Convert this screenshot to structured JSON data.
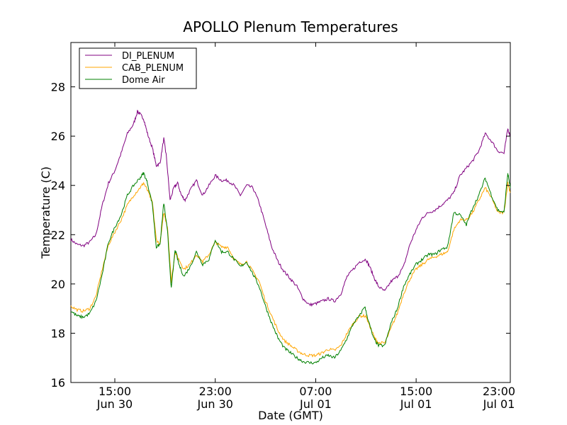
{
  "chart_data": {
    "type": "line",
    "title": "APOLLO Plenum Temperatures",
    "xlabel": "Date (GMT)",
    "ylabel": "Temperature (C)",
    "ylim": [
      16,
      29.8
    ],
    "xlim": [
      11.5,
      46.5
    ],
    "x_unit": "hours since Jun 30 00:00 GMT",
    "yticks": [
      16,
      18,
      20,
      22,
      24,
      26,
      28
    ],
    "xticks": [
      {
        "x": 15,
        "time": "15:00",
        "date": "Jun 30"
      },
      {
        "x": 23,
        "time": "23:00",
        "date": "Jun 30"
      },
      {
        "x": 31,
        "time": "07:00",
        "date": "Jul 01"
      },
      {
        "x": 39,
        "time": "15:00",
        "date": "Jul 01"
      },
      {
        "x": 47,
        "time": "23:00",
        "date": "Jul 01"
      }
    ],
    "grid": false,
    "legend_position": "top-left",
    "series": [
      {
        "name": "DI_PLENUM",
        "color": "#800080",
        "points": [
          [
            11.5,
            21.8
          ],
          [
            12.0,
            21.6
          ],
          [
            12.5,
            21.55
          ],
          [
            13.0,
            21.7
          ],
          [
            13.5,
            22.0
          ],
          [
            14.0,
            23.2
          ],
          [
            14.5,
            24.1
          ],
          [
            15.0,
            24.6
          ],
          [
            15.5,
            25.3
          ],
          [
            16.0,
            26.1
          ],
          [
            16.5,
            26.5
          ],
          [
            16.8,
            27.0
          ],
          [
            17.0,
            26.9
          ],
          [
            17.3,
            26.7
          ],
          [
            17.6,
            26.1
          ],
          [
            18.0,
            25.5
          ],
          [
            18.3,
            24.8
          ],
          [
            18.6,
            24.9
          ],
          [
            18.9,
            25.9
          ],
          [
            19.1,
            25.2
          ],
          [
            19.4,
            23.4
          ],
          [
            19.7,
            23.9
          ],
          [
            20.0,
            24.1
          ],
          [
            20.3,
            23.6
          ],
          [
            20.6,
            23.4
          ],
          [
            21.0,
            23.8
          ],
          [
            21.5,
            24.2
          ],
          [
            22.0,
            23.6
          ],
          [
            22.5,
            24.0
          ],
          [
            23.0,
            24.4
          ],
          [
            23.5,
            24.2
          ],
          [
            24.0,
            24.2
          ],
          [
            24.5,
            24.0
          ],
          [
            25.0,
            23.6
          ],
          [
            25.5,
            24.0
          ],
          [
            26.0,
            23.9
          ],
          [
            26.5,
            23.3
          ],
          [
            27.0,
            22.4
          ],
          [
            27.5,
            21.5
          ],
          [
            28.0,
            20.9
          ],
          [
            28.5,
            20.5
          ],
          [
            29.0,
            20.2
          ],
          [
            29.5,
            19.9
          ],
          [
            30.0,
            19.4
          ],
          [
            30.5,
            19.15
          ],
          [
            31.0,
            19.2
          ],
          [
            31.5,
            19.3
          ],
          [
            32.0,
            19.4
          ],
          [
            32.5,
            19.3
          ],
          [
            33.0,
            19.6
          ],
          [
            33.5,
            20.3
          ],
          [
            34.0,
            20.6
          ],
          [
            34.5,
            20.9
          ],
          [
            35.0,
            21.0
          ],
          [
            35.3,
            20.7
          ],
          [
            35.7,
            20.2
          ],
          [
            36.0,
            19.9
          ],
          [
            36.5,
            19.7
          ],
          [
            37.0,
            20.1
          ],
          [
            37.5,
            20.3
          ],
          [
            38.0,
            20.7
          ],
          [
            38.5,
            21.6
          ],
          [
            39.0,
            22.2
          ],
          [
            39.5,
            22.7
          ],
          [
            40.0,
            22.9
          ],
          [
            40.5,
            23.0
          ],
          [
            41.0,
            23.2
          ],
          [
            41.5,
            23.4
          ],
          [
            42.0,
            23.7
          ],
          [
            42.5,
            24.4
          ],
          [
            43.0,
            24.7
          ],
          [
            43.5,
            25.0
          ],
          [
            44.0,
            25.4
          ],
          [
            44.5,
            26.1
          ],
          [
            45.0,
            25.8
          ],
          [
            45.5,
            25.4
          ],
          [
            46.0,
            25.3
          ],
          [
            46.3,
            26.3
          ],
          [
            46.5,
            26.0
          ]
        ]
      },
      {
        "name": "CAB_PLENUM",
        "color": "#ffa500",
        "points": [
          [
            11.5,
            19.1
          ],
          [
            12.0,
            18.95
          ],
          [
            12.5,
            18.9
          ],
          [
            13.0,
            19.0
          ],
          [
            13.5,
            19.5
          ],
          [
            14.0,
            20.6
          ],
          [
            14.5,
            21.6
          ],
          [
            15.0,
            22.1
          ],
          [
            15.5,
            22.6
          ],
          [
            16.0,
            23.2
          ],
          [
            16.5,
            23.6
          ],
          [
            17.0,
            23.9
          ],
          [
            17.3,
            24.1
          ],
          [
            17.6,
            23.8
          ],
          [
            18.0,
            23.3
          ],
          [
            18.3,
            21.8
          ],
          [
            18.6,
            21.6
          ],
          [
            18.9,
            22.9
          ],
          [
            19.2,
            22.3
          ],
          [
            19.5,
            20.1
          ],
          [
            19.8,
            21.3
          ],
          [
            20.1,
            21.0
          ],
          [
            20.5,
            20.6
          ],
          [
            21.0,
            20.8
          ],
          [
            21.5,
            21.2
          ],
          [
            22.0,
            20.9
          ],
          [
            22.5,
            21.2
          ],
          [
            23.0,
            21.7
          ],
          [
            23.5,
            21.5
          ],
          [
            24.0,
            21.5
          ],
          [
            24.5,
            21.0
          ],
          [
            25.0,
            20.8
          ],
          [
            25.5,
            20.9
          ],
          [
            26.0,
            20.5
          ],
          [
            26.5,
            20.1
          ],
          [
            27.0,
            19.3
          ],
          [
            27.5,
            18.7
          ],
          [
            28.0,
            18.1
          ],
          [
            28.5,
            17.7
          ],
          [
            29.0,
            17.5
          ],
          [
            29.5,
            17.3
          ],
          [
            30.0,
            17.15
          ],
          [
            30.5,
            17.1
          ],
          [
            31.0,
            17.1
          ],
          [
            31.5,
            17.2
          ],
          [
            32.0,
            17.35
          ],
          [
            32.5,
            17.3
          ],
          [
            33.0,
            17.5
          ],
          [
            33.5,
            18.0
          ],
          [
            34.0,
            18.4
          ],
          [
            34.5,
            18.7
          ],
          [
            35.0,
            18.7
          ],
          [
            35.3,
            18.3
          ],
          [
            35.7,
            17.8
          ],
          [
            36.0,
            17.6
          ],
          [
            36.5,
            17.6
          ],
          [
            37.0,
            18.2
          ],
          [
            37.5,
            18.8
          ],
          [
            38.0,
            19.6
          ],
          [
            38.5,
            20.2
          ],
          [
            39.0,
            20.6
          ],
          [
            39.5,
            20.8
          ],
          [
            40.0,
            21.0
          ],
          [
            40.5,
            21.1
          ],
          [
            41.0,
            21.2
          ],
          [
            41.5,
            21.3
          ],
          [
            42.0,
            22.2
          ],
          [
            42.5,
            22.6
          ],
          [
            43.0,
            22.6
          ],
          [
            43.5,
            22.9
          ],
          [
            44.0,
            23.4
          ],
          [
            44.5,
            23.9
          ],
          [
            45.0,
            23.5
          ],
          [
            45.5,
            22.9
          ],
          [
            46.0,
            22.9
          ],
          [
            46.3,
            24.1
          ],
          [
            46.5,
            23.7
          ]
        ]
      },
      {
        "name": "Dome Air",
        "color": "#008000",
        "points": [
          [
            11.5,
            18.9
          ],
          [
            12.0,
            18.7
          ],
          [
            12.5,
            18.65
          ],
          [
            13.0,
            18.8
          ],
          [
            13.5,
            19.3
          ],
          [
            14.0,
            20.4
          ],
          [
            14.5,
            21.7
          ],
          [
            15.0,
            22.3
          ],
          [
            15.5,
            22.8
          ],
          [
            16.0,
            23.6
          ],
          [
            16.5,
            24.0
          ],
          [
            17.0,
            24.3
          ],
          [
            17.3,
            24.5
          ],
          [
            17.6,
            24.1
          ],
          [
            18.0,
            23.2
          ],
          [
            18.3,
            21.5
          ],
          [
            18.6,
            21.6
          ],
          [
            18.9,
            23.3
          ],
          [
            19.2,
            22.1
          ],
          [
            19.5,
            19.8
          ],
          [
            19.8,
            21.4
          ],
          [
            20.1,
            20.8
          ],
          [
            20.5,
            20.3
          ],
          [
            21.0,
            20.7
          ],
          [
            21.5,
            21.3
          ],
          [
            22.0,
            20.8
          ],
          [
            22.5,
            21.0
          ],
          [
            23.0,
            21.8
          ],
          [
            23.5,
            21.3
          ],
          [
            24.0,
            21.3
          ],
          [
            24.5,
            21.0
          ],
          [
            25.0,
            20.7
          ],
          [
            25.5,
            20.9
          ],
          [
            26.0,
            20.4
          ],
          [
            26.5,
            19.9
          ],
          [
            27.0,
            19.1
          ],
          [
            27.5,
            18.4
          ],
          [
            28.0,
            17.8
          ],
          [
            28.5,
            17.4
          ],
          [
            29.0,
            17.2
          ],
          [
            29.5,
            17.0
          ],
          [
            30.0,
            16.85
          ],
          [
            30.5,
            16.8
          ],
          [
            31.0,
            16.8
          ],
          [
            31.5,
            17.0
          ],
          [
            32.0,
            17.1
          ],
          [
            32.5,
            17.0
          ],
          [
            33.0,
            17.3
          ],
          [
            33.5,
            17.8
          ],
          [
            34.0,
            18.4
          ],
          [
            34.5,
            18.7
          ],
          [
            34.9,
            19.1
          ],
          [
            35.2,
            18.5
          ],
          [
            35.6,
            17.8
          ],
          [
            36.0,
            17.5
          ],
          [
            36.5,
            17.5
          ],
          [
            37.0,
            18.4
          ],
          [
            37.5,
            19.0
          ],
          [
            38.0,
            19.9
          ],
          [
            38.5,
            20.4
          ],
          [
            39.0,
            20.8
          ],
          [
            39.5,
            21.0
          ],
          [
            40.0,
            21.2
          ],
          [
            40.5,
            21.2
          ],
          [
            41.0,
            21.4
          ],
          [
            41.5,
            21.5
          ],
          [
            42.0,
            22.9
          ],
          [
            42.5,
            22.8
          ],
          [
            43.0,
            22.4
          ],
          [
            43.5,
            23.1
          ],
          [
            44.0,
            23.6
          ],
          [
            44.5,
            24.3
          ],
          [
            45.0,
            23.6
          ],
          [
            45.5,
            23.0
          ],
          [
            46.0,
            22.9
          ],
          [
            46.3,
            24.5
          ],
          [
            46.5,
            23.9
          ]
        ]
      }
    ]
  }
}
